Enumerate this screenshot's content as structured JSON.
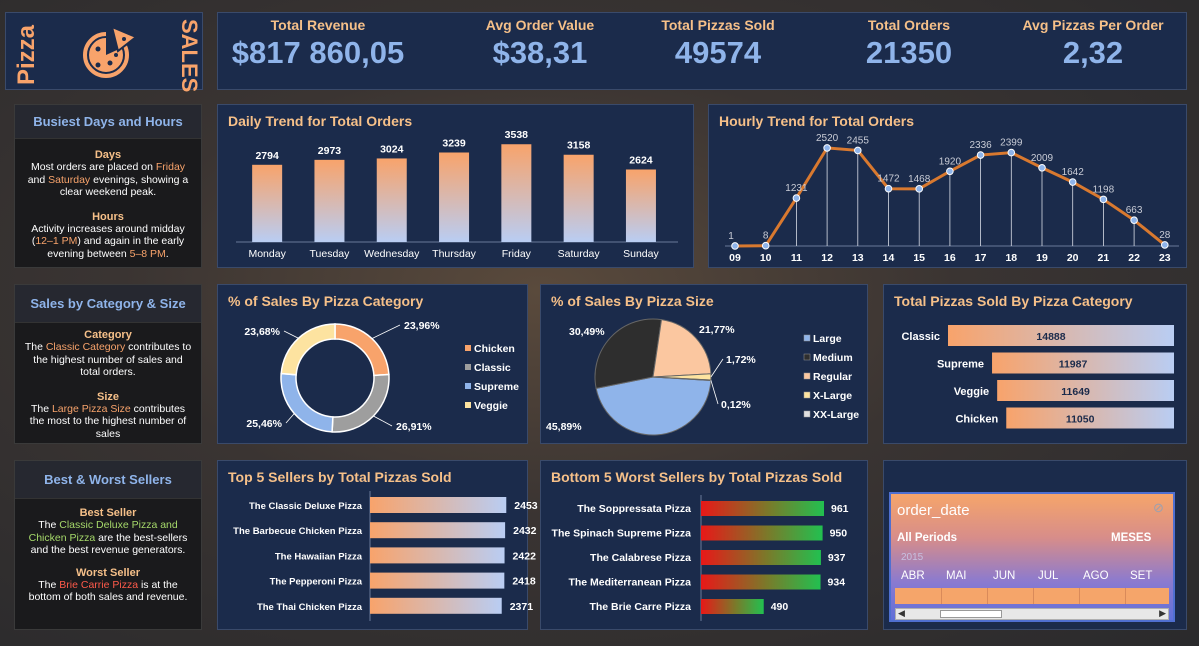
{
  "logo": {
    "left_text": "Pizza",
    "right_text": "SALES"
  },
  "kpis": [
    {
      "label": "Total Revenue",
      "value": "$817 860,05"
    },
    {
      "label": "Avg Order Value",
      "value": "$38,31"
    },
    {
      "label": "Total Pizzas Sold",
      "value": "49574"
    },
    {
      "label": "Total Orders",
      "value": "21350"
    },
    {
      "label": "Avg Pizzas Per Order",
      "value": "2,32"
    }
  ],
  "info1": {
    "title": "Busiest Days and Hours",
    "days_head": "Days",
    "days_t1": "Most orders are placed on ",
    "days_h1": "Friday",
    "days_t2": " and ",
    "days_h2": "Saturday",
    "days_t3": " evenings, showing a clear weekend peak.",
    "hours_head": "Hours",
    "hours_t1": "Activity increases around midday (",
    "hours_h1": "12–1 PM",
    "hours_t2": ") and again in the early evening between ",
    "hours_h2": "5–8 PM",
    "hours_t3": "."
  },
  "info2": {
    "title": "Sales by Category & Size",
    "cat_head": "Category",
    "cat_t1": "The ",
    "cat_h1": "Classic Category",
    "cat_t2": " contributes to the highest number of sales and total orders.",
    "size_head": "Size",
    "size_t1": "The ",
    "size_h1": "Large Pizza Size",
    "size_t2": " contributes the most to the highest number of sales"
  },
  "info3": {
    "title": "Best & Worst Sellers",
    "best_head": "Best Seller",
    "best_t1": "The ",
    "best_h1": "Classic Deluxe Pizza and Chicken Pizza",
    "best_t2": " are the best-sellers and the best revenue generators.",
    "worst_head": "Worst Seller",
    "worst_t1": "The ",
    "worst_h1": "Brie Carrie Pizza",
    "worst_t2": " is at the bottom of both sales and revenue."
  },
  "slicer": {
    "title": "order_date",
    "all_periods": "All Periods",
    "period_type": "MESES",
    "year": "2015",
    "months": [
      "ABR",
      "MAI",
      "JUN",
      "JUL",
      "AGO",
      "SET"
    ],
    "left_arrow": "◀",
    "right_arrow": "▶",
    "clear_icon": "⊘"
  },
  "chart_data": [
    {
      "id": "daily",
      "type": "bar",
      "title": "Daily Trend for Total Orders",
      "categories": [
        "Monday",
        "Tuesday",
        "Wednesday",
        "Thursday",
        "Friday",
        "Saturday",
        "Sunday"
      ],
      "values": [
        2794,
        2973,
        3024,
        3239,
        3538,
        3158,
        2624
      ],
      "ylim": [
        0,
        3800
      ]
    },
    {
      "id": "hourly",
      "type": "line",
      "title": "Hourly Trend for Total Orders",
      "categories": [
        "09",
        "10",
        "11",
        "12",
        "13",
        "14",
        "15",
        "16",
        "17",
        "18",
        "19",
        "20",
        "21",
        "22",
        "23"
      ],
      "values": [
        1,
        8,
        1231,
        2520,
        2455,
        1472,
        1468,
        1920,
        2336,
        2399,
        2009,
        1642,
        1198,
        663,
        28
      ],
      "ylim": [
        0,
        2800
      ]
    },
    {
      "id": "category_pct",
      "type": "pie",
      "title": "% of Sales By Pizza Category",
      "labels": [
        "Chicken",
        "Classic",
        "Supreme",
        "Veggie"
      ],
      "values": [
        23.96,
        26.91,
        25.46,
        23.68
      ],
      "value_labels": [
        "23,96%",
        "26,91%",
        "25,46%",
        "23,68%"
      ],
      "colors": [
        "#f8a36b",
        "#9e9e9e",
        "#8fb4ea",
        "#fde3a0"
      ]
    },
    {
      "id": "size_pct",
      "type": "pie",
      "title": "% of Sales By Pizza Size",
      "labels": [
        "Large",
        "Medium",
        "Regular",
        "X-Large",
        "XX-Large"
      ],
      "values": [
        45.89,
        30.49,
        21.77,
        1.72,
        0.12
      ],
      "value_labels": [
        "45,89%",
        "30,49%",
        "21,77%",
        "1,72%",
        "0,12%"
      ],
      "colors": [
        "#8fb4ea",
        "#2e2e2e",
        "#fbc7a0",
        "#fde3a0",
        "#e0e0e0"
      ]
    },
    {
      "id": "category_qty",
      "type": "bar",
      "title": "Total Pizzas Sold By Pizza Category",
      "categories": [
        "Classic",
        "Supreme",
        "Veggie",
        "Chicken"
      ],
      "values": [
        14888,
        11987,
        11649,
        11050
      ]
    },
    {
      "id": "top5",
      "type": "bar",
      "title": "Top 5 Sellers by Total Pizzas Sold",
      "categories": [
        "The Classic Deluxe Pizza",
        "The Barbecue Chicken Pizza",
        "The Hawaiian Pizza",
        "The Pepperoni Pizza",
        "The Thai Chicken Pizza"
      ],
      "values": [
        2453,
        2432,
        2422,
        2418,
        2371
      ],
      "xlim": [
        0,
        2700
      ]
    },
    {
      "id": "bottom5",
      "type": "bar",
      "title": "Bottom 5 Worst Sellers by Total Pizzas Sold",
      "categories": [
        "The Soppressata Pizza",
        "The Spinach Supreme Pizza",
        "The Calabrese Pizza",
        "The Mediterranean Pizza",
        "The Brie Carre Pizza"
      ],
      "values": [
        961,
        950,
        937,
        934,
        490
      ],
      "xlim": [
        0,
        1250
      ]
    }
  ]
}
